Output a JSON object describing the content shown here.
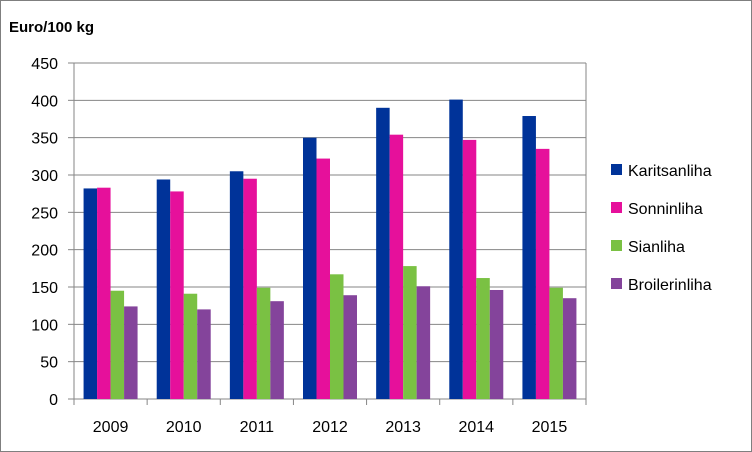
{
  "chart_data": {
    "type": "bar",
    "ylabel": "Euro/100 kg",
    "xlabel": "",
    "title": "",
    "ylim": [
      0,
      450
    ],
    "yticks": [
      0,
      50,
      100,
      150,
      200,
      250,
      300,
      350,
      400,
      450
    ],
    "grid": true,
    "legend_position": "right",
    "categories": [
      "2009",
      "2010",
      "2011",
      "2012",
      "2013",
      "2014",
      "2015"
    ],
    "series": [
      {
        "name": "Karitsanliha",
        "color": "#003399",
        "values": [
          282,
          294,
          305,
          350,
          390,
          401,
          379
        ]
      },
      {
        "name": "Sonninliha",
        "color": "#e6109b",
        "values": [
          283,
          278,
          295,
          322,
          354,
          347,
          335
        ]
      },
      {
        "name": "Sianliha",
        "color": "#7ac143",
        "values": [
          145,
          141,
          149,
          167,
          178,
          162,
          149
        ]
      },
      {
        "name": "Broilerinliha",
        "color": "#84449b",
        "values": [
          124,
          120,
          131,
          139,
          151,
          146,
          135
        ]
      }
    ]
  }
}
